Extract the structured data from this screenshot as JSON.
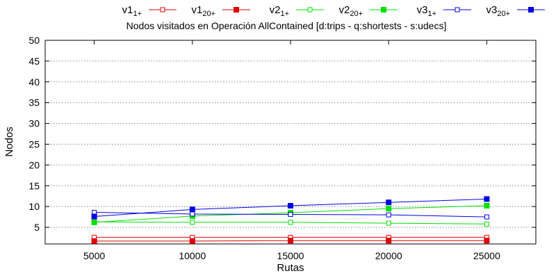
{
  "chart_data": {
    "type": "line",
    "title": "Nodos visitados en Operación AllContained [d:trips - q:shortests - s:udecs]",
    "xlabel": "Rutas",
    "ylabel": "Nodos",
    "x": [
      5000,
      10000,
      15000,
      20000,
      25000
    ],
    "xlim": [
      2500,
      27500
    ],
    "ylim": [
      1,
      50
    ],
    "yticks": [
      5,
      10,
      15,
      20,
      25,
      30,
      35,
      40,
      45,
      50
    ],
    "xticks": [
      5000,
      10000,
      15000,
      20000,
      25000
    ],
    "grid": true,
    "legend_position": "top",
    "series": [
      {
        "base": "v1",
        "sub": "1+",
        "color": "#e00000",
        "marker": "open-square",
        "values": [
          2.6,
          2.6,
          2.6,
          2.6,
          2.6
        ]
      },
      {
        "base": "v1",
        "sub": "20+",
        "color": "#e00000",
        "marker": "filled-square",
        "values": [
          1.7,
          1.7,
          1.8,
          1.8,
          1.8
        ]
      },
      {
        "base": "v2",
        "sub": "1+",
        "color": "#00e000",
        "marker": "open-square",
        "values": [
          6.3,
          6.2,
          6.2,
          6.0,
          5.8
        ]
      },
      {
        "base": "v2",
        "sub": "20+",
        "color": "#00e000",
        "marker": "filled-square",
        "values": [
          6.2,
          7.7,
          8.5,
          9.5,
          10.2
        ]
      },
      {
        "base": "v3",
        "sub": "1+",
        "color": "#0000e0",
        "marker": "open-square",
        "values": [
          8.6,
          8.2,
          8.1,
          8.0,
          7.5
        ]
      },
      {
        "base": "v3",
        "sub": "20+",
        "color": "#0000e0",
        "marker": "filled-square",
        "values": [
          7.6,
          9.3,
          10.2,
          11.0,
          11.8
        ]
      }
    ]
  }
}
